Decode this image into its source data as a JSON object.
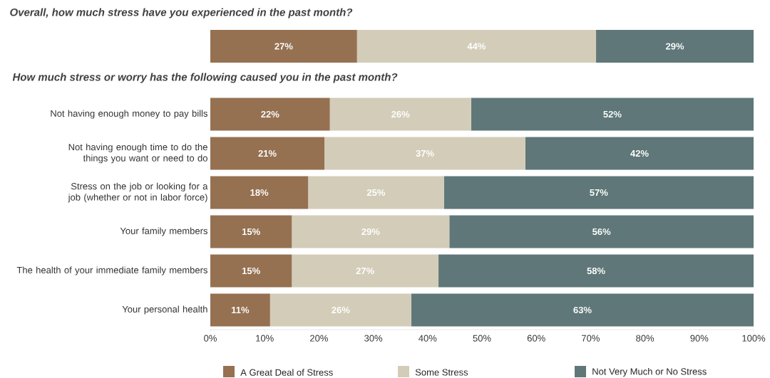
{
  "chart_data": [
    {
      "type": "bar",
      "orientation": "horizontal",
      "stacked": true,
      "title": "Overall, how much stress have you experienced in the past month?",
      "categories": [
        null
      ],
      "xlim": [
        0,
        100
      ],
      "tick_labels": false,
      "series": [
        {
          "color": "#957152",
          "values": [
            27
          ],
          "value_labels": [
            "27%"
          ]
        },
        {
          "color": "#d3ccb8",
          "values": [
            44
          ],
          "value_labels": [
            "44%"
          ]
        },
        {
          "color": "#5f7778",
          "values": [
            29
          ],
          "value_labels": [
            "29%"
          ]
        }
      ]
    },
    {
      "type": "bar",
      "orientation": "horizontal",
      "stacked": true,
      "title": "How much stress or worry has the following caused you in the past month?",
      "categories": [
        "Not having enough money to pay bills",
        "Not having enough time to do the things you want or need to do",
        "Stress on the job or looking for a job (whether or not in labor force)",
        "Your family members",
        "The health of your immediate family members",
        "Your personal health"
      ],
      "xlim": [
        0,
        100
      ],
      "xticks": [
        {
          "value": 0,
          "label": "0%"
        },
        {
          "value": 10,
          "label": "10%"
        },
        {
          "value": 20,
          "label": "20%"
        },
        {
          "value": 30,
          "label": "30%"
        },
        {
          "value": 40,
          "label": "40%"
        },
        {
          "value": 50,
          "label": "50%"
        },
        {
          "value": 60,
          "label": "60%"
        },
        {
          "value": 70,
          "label": "70%"
        },
        {
          "value": 80,
          "label": "80%"
        },
        {
          "value": 90,
          "label": "90%"
        },
        {
          "value": 100,
          "label": "100%"
        }
      ],
      "legend": "bottom",
      "series": [
        {
          "name": "A Great Deal of Stress",
          "color": "#957152",
          "values": [
            22,
            21,
            18,
            15,
            15,
            11
          ],
          "value_labels": [
            "22%",
            "21%",
            "18%",
            "15%",
            "15%",
            "11%"
          ]
        },
        {
          "name": "Some Stress",
          "color": "#d3ccb8",
          "values": [
            26,
            37,
            25,
            29,
            27,
            26
          ],
          "value_labels": [
            "26%",
            "37%",
            "25%",
            "29%",
            "27%",
            "26%"
          ]
        },
        {
          "name": "Not Very Much or No Stress",
          "color": "#5f7778",
          "values": [
            52,
            42,
            57,
            56,
            58,
            63
          ],
          "value_labels": [
            "52%",
            "42%",
            "57%",
            "56%",
            "58%",
            "63%"
          ]
        }
      ]
    }
  ]
}
